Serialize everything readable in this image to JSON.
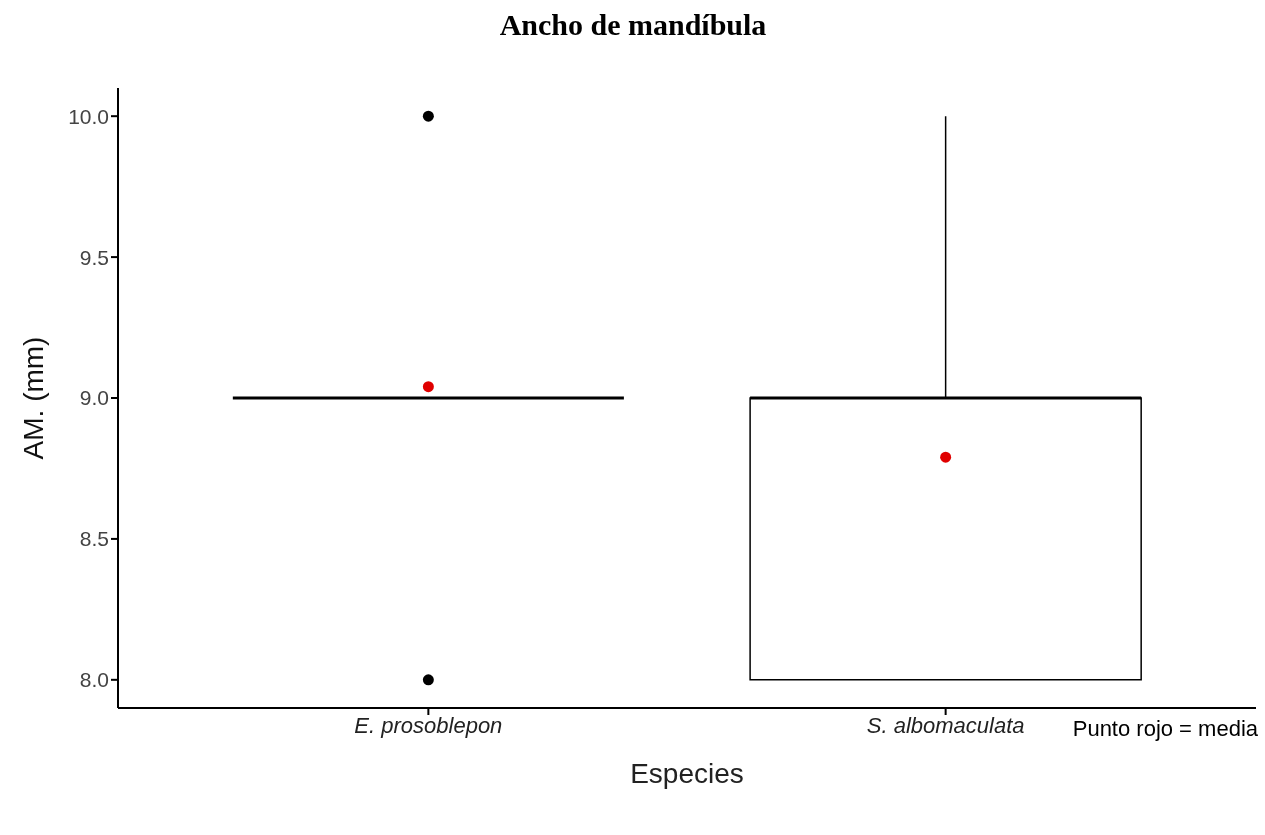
{
  "chart_data": {
    "type": "box",
    "title": "Ancho de mandíbula",
    "xlabel": "Especies",
    "ylabel": "AM. (mm)",
    "categories": [
      "E. prosoblepon",
      "S. albomaculata"
    ],
    "boxes": [
      {
        "low": 9,
        "q1": 9,
        "median": 9,
        "q3": 9,
        "high": 9,
        "mean": 9.04,
        "outliers": [
          8,
          10
        ]
      },
      {
        "low": 8,
        "q1": 8,
        "median": 9,
        "q3": 9,
        "high": 10,
        "mean": 8.79
      }
    ],
    "ylim": [
      7.9,
      10.1
    ],
    "yticks": [
      {
        "value": 8,
        "label": "8.0"
      },
      {
        "value": 8.5,
        "label": "8.5"
      },
      {
        "value": 9,
        "label": "9.0"
      },
      {
        "value": 9.5,
        "label": "9.5"
      },
      {
        "value": 10,
        "label": "10.0"
      }
    ],
    "grid": false,
    "annotations": [
      "Punto rojo = media"
    ]
  }
}
